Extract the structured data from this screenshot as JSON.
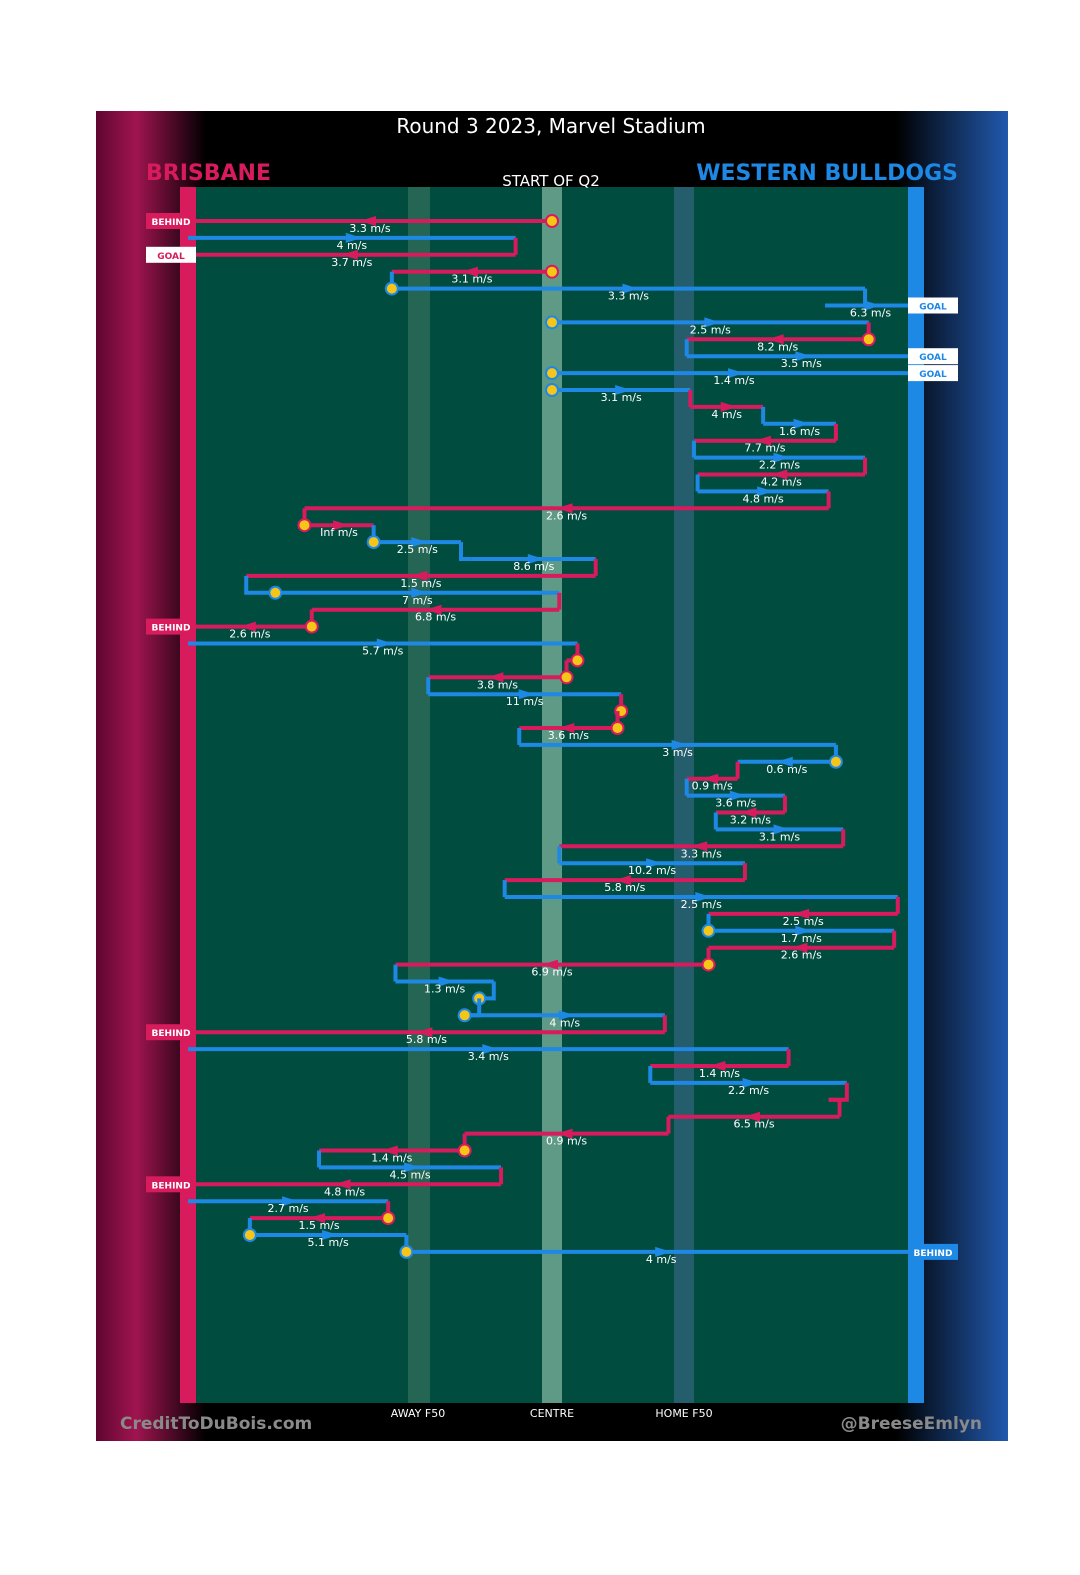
{
  "title": "Round 3 2023, Marvel Stadium",
  "subtitle": "START OF Q2",
  "teams": {
    "left": {
      "name": "BRISBANE",
      "color": "#d81b5c"
    },
    "right": {
      "name": "WESTERN BULLDOGS",
      "color": "#1e88e5"
    }
  },
  "credits": {
    "left": "CreditToDuBois.com",
    "right": "@BreeseEmlyn"
  },
  "colors": {
    "field": "#004d40",
    "band": "#2e6b57",
    "centre": "#5f9a86",
    "marker": "#f5c518"
  },
  "chart_data": {
    "type": "line",
    "x_axis": {
      "ticks": [
        "AWAY F50",
        "CENTRE",
        "HOME F50"
      ],
      "xlim": [
        -1,
        1
      ],
      "tick_values": [
        -0.4,
        0,
        0.4
      ]
    },
    "rows": [
      {
        "team": "BRI",
        "x_from": 0.0,
        "x_to": -1.0,
        "speed": "3.3 m/s",
        "marker_start": true,
        "end_label": "BEHIND"
      },
      {
        "team": "WB",
        "x_from": -1.0,
        "x_to": -0.1,
        "speed": "4 m/s"
      },
      {
        "team": "BRI",
        "x_from": -0.1,
        "x_to": -1.0,
        "speed": "3.7 m/s",
        "end_label": "GOAL"
      },
      {
        "team": "BRI",
        "x_from": 0.0,
        "x_to": -0.44,
        "speed": "3.1 m/s",
        "marker_start": true
      },
      {
        "team": "WB",
        "x_from": -0.44,
        "x_to": 0.86,
        "speed": "3.3 m/s",
        "marker_start": true
      },
      {
        "team": "WB",
        "x_from": 0.75,
        "x_to": 1.0,
        "speed": "6.3 m/s",
        "end_label": "GOAL"
      },
      {
        "team": "WB",
        "x_from": 0.0,
        "x_to": 0.87,
        "speed": "2.5 m/s",
        "marker_start": true
      },
      {
        "team": "BRI",
        "x_from": 0.87,
        "x_to": 0.37,
        "speed": "8.2 m/s",
        "marker_start": true
      },
      {
        "team": "WB",
        "x_from": 0.37,
        "x_to": 1.0,
        "speed": "3.5 m/s",
        "end_label": "GOAL"
      },
      {
        "team": "WB",
        "x_from": 0.0,
        "x_to": 1.0,
        "speed": "1.4 m/s",
        "marker_start": true,
        "end_label": "GOAL"
      },
      {
        "team": "WB",
        "x_from": 0.0,
        "x_to": 0.38,
        "speed": "3.1 m/s",
        "marker_start": true
      },
      {
        "team": "BRI",
        "x_from": 0.38,
        "x_to": 0.58,
        "speed": "4 m/s"
      },
      {
        "team": "WB",
        "x_from": 0.58,
        "x_to": 0.78,
        "speed": "1.6 m/s"
      },
      {
        "team": "BRI",
        "x_from": 0.78,
        "x_to": 0.39,
        "speed": "7.7 m/s"
      },
      {
        "team": "WB",
        "x_from": 0.39,
        "x_to": 0.86,
        "speed": "2.2 m/s"
      },
      {
        "team": "BRI",
        "x_from": 0.86,
        "x_to": 0.4,
        "speed": "4.2 m/s"
      },
      {
        "team": "WB",
        "x_from": 0.4,
        "x_to": 0.76,
        "speed": "4.8 m/s"
      },
      {
        "team": "BRI",
        "x_from": 0.76,
        "x_to": -0.68,
        "speed": "2.6 m/s"
      },
      {
        "team": "BRI",
        "x_from": -0.68,
        "x_to": -0.49,
        "speed": "Inf m/s",
        "marker_start": true
      },
      {
        "team": "WB",
        "x_from": -0.49,
        "x_to": -0.25,
        "speed": "2.5 m/s",
        "marker_start": true
      },
      {
        "team": "WB",
        "x_from": -0.22,
        "x_to": 0.12,
        "speed": "8.6 m/s"
      },
      {
        "team": "BRI",
        "x_from": 0.12,
        "x_to": -0.84,
        "speed": "1.5 m/s"
      },
      {
        "team": "WB",
        "x_from": -0.76,
        "x_to": 0.02,
        "speed": "7 m/s",
        "marker_start": true
      },
      {
        "team": "BRI",
        "x_from": 0.02,
        "x_to": -0.66,
        "speed": "6.8 m/s"
      },
      {
        "team": "BRI",
        "x_from": -0.66,
        "x_to": -1.0,
        "speed": "2.6 m/s",
        "marker_start": true,
        "end_label": "BEHIND"
      },
      {
        "team": "WB",
        "x_from": -1.0,
        "x_to": 0.07,
        "speed": "5.7 m/s"
      },
      {
        "team": "BRI",
        "x_from": 0.07,
        "x_to": 0.04,
        "speed": "",
        "marker_start": true
      },
      {
        "team": "BRI",
        "x_from": 0.04,
        "x_to": -0.34,
        "speed": "3.8 m/s",
        "marker_start": true
      },
      {
        "team": "WB",
        "x_from": -0.34,
        "x_to": 0.19,
        "speed": "11 m/s"
      },
      {
        "team": "BRI",
        "x_from": 0.19,
        "x_to": 0.18,
        "speed": "",
        "marker_start": true
      },
      {
        "team": "BRI",
        "x_from": 0.18,
        "x_to": -0.09,
        "speed": "3.6 m/s",
        "marker_start": true
      },
      {
        "team": "WB",
        "x_from": -0.09,
        "x_to": 0.78,
        "speed": "3 m/s"
      },
      {
        "team": "WB",
        "x_from": 0.78,
        "x_to": 0.51,
        "speed": "0.6 m/s",
        "marker_start": true
      },
      {
        "team": "BRI",
        "x_from": 0.51,
        "x_to": 0.37,
        "speed": "0.9 m/s"
      },
      {
        "team": "WB",
        "x_from": 0.37,
        "x_to": 0.64,
        "speed": "3.6 m/s"
      },
      {
        "team": "BRI",
        "x_from": 0.64,
        "x_to": 0.45,
        "speed": "3.2 m/s"
      },
      {
        "team": "WB",
        "x_from": 0.45,
        "x_to": 0.8,
        "speed": "3.1 m/s"
      },
      {
        "team": "BRI",
        "x_from": 0.8,
        "x_to": 0.02,
        "speed": "3.3 m/s"
      },
      {
        "team": "WB",
        "x_from": 0.02,
        "x_to": 0.53,
        "speed": "10.2 m/s"
      },
      {
        "team": "BRI",
        "x_from": 0.53,
        "x_to": -0.13,
        "speed": "5.8 m/s"
      },
      {
        "team": "WB",
        "x_from": -0.13,
        "x_to": 0.95,
        "speed": "2.5 m/s"
      },
      {
        "team": "BRI",
        "x_from": 0.95,
        "x_to": 0.43,
        "speed": "2.5 m/s"
      },
      {
        "team": "WB",
        "x_from": 0.43,
        "x_to": 0.94,
        "speed": "1.7 m/s",
        "marker_start": true
      },
      {
        "team": "BRI",
        "x_from": 0.94,
        "x_to": 0.43,
        "speed": "2.6 m/s"
      },
      {
        "team": "BRI",
        "x_from": 0.43,
        "x_to": -0.43,
        "speed": "6.9 m/s",
        "marker_start": true
      },
      {
        "team": "WB",
        "x_from": -0.43,
        "x_to": -0.16,
        "speed": "1.3 m/s"
      },
      {
        "team": "WB",
        "x_from": -0.2,
        "x_to": -0.2,
        "speed": "",
        "marker_start": true
      },
      {
        "team": "WB",
        "x_from": -0.24,
        "x_to": 0.31,
        "speed": "4 m/s",
        "marker_start": true
      },
      {
        "team": "BRI",
        "x_from": 0.31,
        "x_to": -1.0,
        "speed": "5.8 m/s",
        "end_label": "BEHIND"
      },
      {
        "team": "WB",
        "x_from": -1.0,
        "x_to": 0.65,
        "speed": "3.4 m/s"
      },
      {
        "team": "BRI",
        "x_from": 0.65,
        "x_to": 0.27,
        "speed": "1.4 m/s"
      },
      {
        "team": "WB",
        "x_from": 0.27,
        "x_to": 0.81,
        "speed": "2.2 m/s"
      },
      {
        "team": "BRI",
        "x_from": 0.76,
        "x_to": 0.79,
        "speed": ""
      },
      {
        "team": "BRI",
        "x_from": 0.79,
        "x_to": 0.32,
        "speed": "6.5 m/s"
      },
      {
        "team": "BRI",
        "x_from": 0.32,
        "x_to": -0.24,
        "speed": "0.9 m/s"
      },
      {
        "team": "BRI",
        "x_from": -0.24,
        "x_to": -0.64,
        "speed": "1.4 m/s",
        "marker_start": true
      },
      {
        "team": "WB",
        "x_from": -0.64,
        "x_to": -0.14,
        "speed": "4.5 m/s"
      },
      {
        "team": "BRI",
        "x_from": -0.14,
        "x_to": -1.0,
        "speed": "4.8 m/s",
        "end_label": "BEHIND"
      },
      {
        "team": "WB",
        "x_from": -1.0,
        "x_to": -0.45,
        "speed": "2.7 m/s"
      },
      {
        "team": "BRI",
        "x_from": -0.45,
        "x_to": -0.83,
        "speed": "1.5 m/s",
        "marker_start": true
      },
      {
        "team": "WB",
        "x_from": -0.83,
        "x_to": -0.4,
        "speed": "5.1 m/s",
        "marker_start": true
      },
      {
        "team": "WB",
        "x_from": -0.4,
        "x_to": 1.0,
        "speed": "4 m/s",
        "marker_start": true,
        "end_label": "BEHIND"
      }
    ]
  }
}
